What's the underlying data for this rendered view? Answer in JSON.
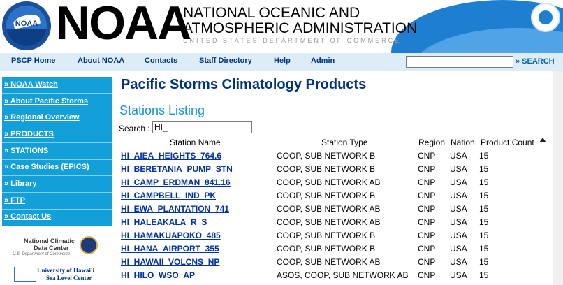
{
  "header": {
    "logo_text": "NOAA",
    "wordmark": "NOAA",
    "agency_line1": "NATIONAL OCEANIC AND",
    "agency_line2": "ATMOSPHERIC ADMINISTRATION",
    "dept_line": "UNITED STATES DEPARTMENT OF COMMERCE"
  },
  "nav": {
    "items": [
      "PSCP Home",
      "About NOAA",
      "Contacts",
      "Staff Directory",
      "Help",
      "Admin"
    ],
    "search_value": "",
    "search_button": "» SEARCH"
  },
  "sidebar": {
    "items": [
      "» NOAA Watch",
      "» About Pacific Storms",
      "» Regional Overview",
      "» PRODUCTS",
      "» STATIONS",
      "» Case Studies (EPICS)",
      "» Library",
      "» FTP",
      "» Contact Us"
    ],
    "ncdc_line1": "National Climatic",
    "ncdc_line2": "Data Center",
    "ncdc_line3": "U.S. Department of Commerce",
    "uh_line1": "University of Hawai'i",
    "uh_line2": "Sea Level Center"
  },
  "main": {
    "title": "Pacific Storms Climatology Products",
    "section": "Stations Listing",
    "search_label": "Search :",
    "search_value": "HI_",
    "columns": [
      "Station Name",
      "Station Type",
      "Region",
      "Nation",
      "Product Count"
    ],
    "rows": [
      {
        "name": "HI_AIEA_HEIGHTS_764.6",
        "type": "COOP, SUB NETWORK B",
        "region": "CNP",
        "nation": "USA",
        "count": "15"
      },
      {
        "name": "HI_BERETANIA_PUMP_STN",
        "type": "COOP, SUB NETWORK B",
        "region": "CNP",
        "nation": "USA",
        "count": "15"
      },
      {
        "name": "HI_CAMP_ERDMAN_841.16",
        "type": "COOP, SUB NETWORK AB",
        "region": "CNP",
        "nation": "USA",
        "count": "15"
      },
      {
        "name": "HI_CAMPBELL_IND_PK",
        "type": "COOP, SUB NETWORK B",
        "region": "CNP",
        "nation": "USA",
        "count": "15"
      },
      {
        "name": "HI_EWA_PLANTATION_741",
        "type": "COOP, SUB NETWORK AB",
        "region": "CNP",
        "nation": "USA",
        "count": "15"
      },
      {
        "name": "HI_HALEAKALA_R_S",
        "type": "COOP, SUB NETWORK AB",
        "region": "CNP",
        "nation": "USA",
        "count": "15"
      },
      {
        "name": "HI_HAMAKUAPOKO_485",
        "type": "COOP, SUB NETWORK B",
        "region": "CNP",
        "nation": "USA",
        "count": "15"
      },
      {
        "name": "HI_HANA_AIRPORT_355",
        "type": "COOP, SUB NETWORK B",
        "region": "CNP",
        "nation": "USA",
        "count": "15"
      },
      {
        "name": "HI_HAWAII_VOLCNS_NP",
        "type": "COOP, SUB NETWORK AB",
        "region": "CNP",
        "nation": "USA",
        "count": "15"
      },
      {
        "name": "HI_HILO_WSO_AP",
        "type": "ASOS, COOP, SUB NETWORK AB",
        "region": "CNP",
        "nation": "USA",
        "count": "15"
      }
    ]
  }
}
